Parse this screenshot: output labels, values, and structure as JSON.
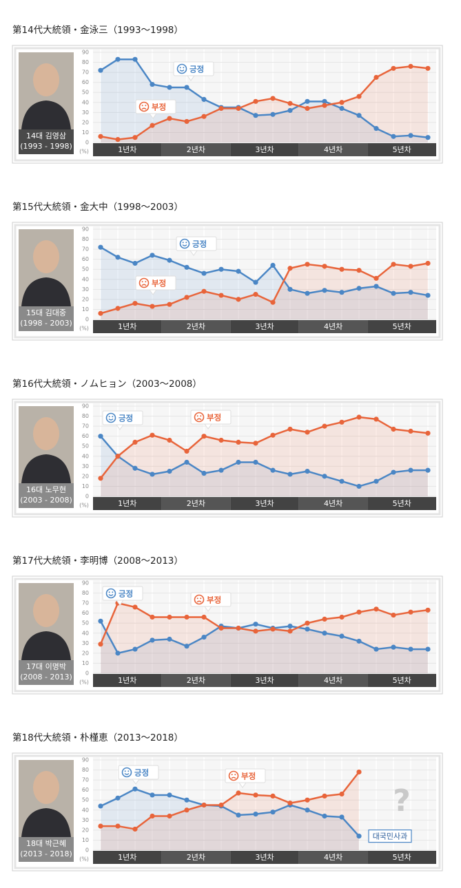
{
  "chart_data": [
    {
      "type": "line",
      "title": "第14代大統領・金泳三（1993～1998）",
      "photo_caption": [
        "14대 김영삼",
        "(1993 - 1998)"
      ],
      "ylim": [
        0,
        90
      ],
      "yticks": [
        0,
        10,
        20,
        30,
        40,
        50,
        60,
        70,
        80,
        90
      ],
      "y_unit": "(%)",
      "grid": true,
      "year_labels": [
        "1년차",
        "2년차",
        "3년차",
        "4년차",
        "5년차"
      ],
      "series": [
        {
          "name": "긍정",
          "color": "#4a86c5",
          "values": [
            72,
            83,
            83,
            58,
            55,
            55,
            43,
            35,
            35,
            27,
            28,
            32,
            41,
            41,
            34,
            27,
            14,
            6,
            7,
            5
          ]
        },
        {
          "name": "부정",
          "color": "#e8643a",
          "values": [
            6,
            3,
            5,
            17,
            24,
            21,
            26,
            34,
            34,
            41,
            44,
            39,
            34,
            37,
            40,
            46,
            65,
            74,
            76,
            74
          ]
        }
      ]
    },
    {
      "type": "line",
      "title": "第15代大統領・金大中（1998～2003）",
      "photo_caption": [
        "15대 김대중",
        "(1998 - 2003)"
      ],
      "ylim": [
        0,
        90
      ],
      "yticks": [
        0,
        10,
        20,
        30,
        40,
        50,
        60,
        70,
        80,
        90
      ],
      "y_unit": "(%)",
      "grid": true,
      "year_labels": [
        "1년차",
        "2년차",
        "3년차",
        "4년차",
        "5년차"
      ],
      "series": [
        {
          "name": "긍정",
          "color": "#4a86c5",
          "values": [
            72,
            62,
            56,
            64,
            59,
            52,
            46,
            50,
            48,
            37,
            54,
            30,
            26,
            29,
            27,
            31,
            33,
            26,
            27,
            24
          ]
        },
        {
          "name": "부정",
          "color": "#e8643a",
          "values": [
            6,
            11,
            16,
            13,
            15,
            22,
            28,
            24,
            20,
            25,
            17,
            51,
            55,
            53,
            50,
            49,
            41,
            55,
            53,
            56
          ]
        }
      ]
    },
    {
      "type": "line",
      "title": "第16代大統領・ノムヒョン（2003～2008）",
      "photo_caption": [
        "16대 노무현",
        "(2003 - 2008)"
      ],
      "ylim": [
        0,
        90
      ],
      "yticks": [
        0,
        10,
        20,
        30,
        40,
        50,
        60,
        70,
        80,
        90
      ],
      "y_unit": "(%)",
      "grid": true,
      "year_labels": [
        "1년차",
        "2년차",
        "3년차",
        "4년차",
        "5년차"
      ],
      "series": [
        {
          "name": "긍정",
          "color": "#4a86c5",
          "values": [
            60,
            40,
            28,
            22,
            25,
            34,
            23,
            26,
            34,
            34,
            26,
            22,
            25,
            20,
            15,
            10,
            15,
            24,
            26,
            26
          ]
        },
        {
          "name": "부정",
          "color": "#e8643a",
          "values": [
            18,
            40,
            54,
            61,
            56,
            45,
            60,
            56,
            54,
            53,
            61,
            67,
            64,
            70,
            74,
            79,
            77,
            67,
            65,
            63
          ]
        }
      ]
    },
    {
      "type": "line",
      "title": "第17代大統領・李明博（2008～2013）",
      "photo_caption": [
        "17대 이명박",
        "(2008 - 2013)"
      ],
      "ylim": [
        0,
        90
      ],
      "yticks": [
        0,
        10,
        20,
        30,
        40,
        50,
        60,
        70,
        80,
        90
      ],
      "y_unit": "(%)",
      "grid": true,
      "year_labels": [
        "1년차",
        "2년차",
        "3년차",
        "4년차",
        "5년차"
      ],
      "series": [
        {
          "name": "긍정",
          "color": "#4a86c5",
          "values": [
            52,
            20,
            24,
            33,
            34,
            27,
            36,
            47,
            45,
            49,
            45,
            47,
            44,
            40,
            37,
            32,
            24,
            26,
            24,
            24
          ]
        },
        {
          "name": "부정",
          "color": "#e8643a",
          "values": [
            29,
            70,
            66,
            56,
            56,
            56,
            56,
            45,
            45,
            42,
            44,
            42,
            50,
            54,
            56,
            61,
            64,
            58,
            61,
            63
          ]
        }
      ]
    },
    {
      "type": "line",
      "title": "第18代大統領・朴槿恵（2013～2018）",
      "photo_caption": [
        "18대 박근혜",
        "(2013 - 2018)"
      ],
      "ylim": [
        0,
        90
      ],
      "yticks": [
        0,
        10,
        20,
        30,
        40,
        50,
        60,
        70,
        80,
        90
      ],
      "y_unit": "(%)",
      "grid": true,
      "year_labels": [
        "1년차",
        "2년차",
        "3년차",
        "4년차",
        "5년차"
      ],
      "callout": "대국민사과",
      "placeholder": "?",
      "series": [
        {
          "name": "긍정",
          "color": "#4a86c5",
          "values": [
            44,
            52,
            61,
            55,
            55,
            50,
            45,
            44,
            35,
            36,
            38,
            45,
            40,
            34,
            33,
            14,
            null,
            null,
            null,
            null
          ]
        },
        {
          "name": "부정",
          "color": "#e8643a",
          "values": [
            24,
            24,
            21,
            34,
            34,
            40,
            45,
            45,
            57,
            55,
            54,
            47,
            50,
            54,
            56,
            78,
            null,
            null,
            null,
            null
          ]
        }
      ]
    }
  ]
}
